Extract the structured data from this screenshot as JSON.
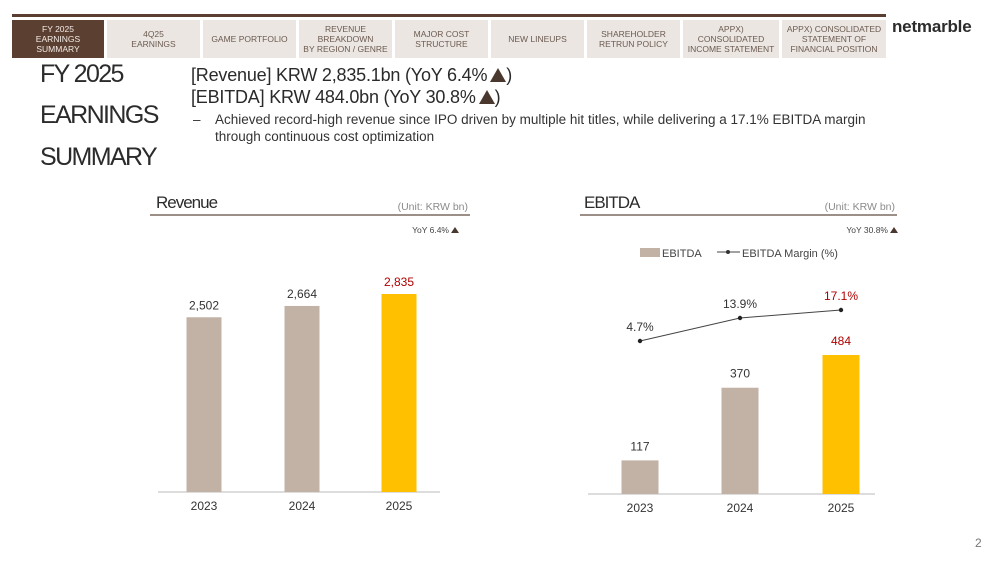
{
  "nav": {
    "tabs": [
      {
        "label": "FY 2025\nEARNINGS\nSUMMARY",
        "active": true
      },
      {
        "label": "4Q25\nEARNINGS"
      },
      {
        "label": "GAME PORTFOLIO"
      },
      {
        "label": "REVENUE\nBREAKDOWN\nBY REGION / GENRE"
      },
      {
        "label": "MAJOR COST\nSTRUCTURE"
      },
      {
        "label": "NEW LINEUPS"
      },
      {
        "label": "SHAREHOLDER\nRETRUN POLICY"
      },
      {
        "label": "APPX) CONSOLIDATED\nINCOME STATEMENT"
      },
      {
        "label": "APPX) CONSOLIDATED\nSTATEMENT OF\nFINANCIAL POSITION"
      }
    ],
    "logo": "netmarble"
  },
  "title": {
    "line1": "FY 2025",
    "line2": "EARNINGS",
    "line3": "SUMMARY"
  },
  "summary": {
    "revenue_line": "[Revenue] KRW 2,835.1bn (YoY 6.4%",
    "revenue_close": ")",
    "ebitda_line": "[EBITDA] KRW 484.0bn (YoY 30.8%",
    "ebitda_close": ")",
    "bullet_dash": "–",
    "bullet": "Achieved record-high revenue since IPO driven by multiple hit titles, while delivering a 17.1% EBITDA margin through continuous cost optimization"
  },
  "page_number": "2",
  "colors": {
    "bar_neutral": "#c2b1a5",
    "bar_highlight": "#ffc000",
    "highlight_text": "#b00000",
    "rule": "#7a6a60"
  },
  "chart_data": [
    {
      "type": "bar",
      "title": "Revenue",
      "unit": "(Unit: KRW bn)",
      "yoy_note": "YoY 6.4%",
      "categories": [
        "2023",
        "2024",
        "2025"
      ],
      "values": [
        2502,
        2664,
        2835
      ],
      "value_labels": [
        "2,502",
        "2,664",
        "2,835"
      ],
      "highlight_index": 2,
      "ylim": [
        0,
        3000
      ]
    },
    {
      "type": "bar+line",
      "title": "EBITDA",
      "unit": "(Unit: KRW bn)",
      "yoy_note": "YoY 30.8%",
      "legend": [
        "EBITDA",
        "EBITDA Margin (%)"
      ],
      "categories": [
        "2023",
        "2024",
        "2025"
      ],
      "series": [
        {
          "name": "EBITDA",
          "type": "bar",
          "values": [
            117,
            370,
            484
          ],
          "labels": [
            "117",
            "370",
            "484"
          ]
        },
        {
          "name": "EBITDA Margin (%)",
          "type": "line",
          "values": [
            4.7,
            13.9,
            17.1
          ],
          "labels": [
            "4.7%",
            "13.9%",
            "17.1%"
          ]
        }
      ],
      "highlight_index": 2,
      "ylim": [
        0,
        700
      ]
    }
  ]
}
